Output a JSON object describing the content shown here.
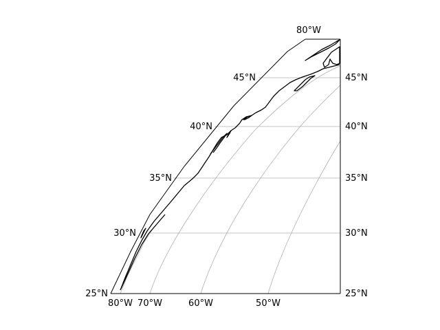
{
  "chart_data": {
    "type": "map",
    "projection": "conic (sector view)",
    "grid": true,
    "gridline_color": "#b0b0b0",
    "outline_color": "#000000",
    "coastline_color": "#000000",
    "latitudes": [
      {
        "value": 25,
        "label": "25°N"
      },
      {
        "value": 30,
        "label": "30°N"
      },
      {
        "value": 35,
        "label": "35°N"
      },
      {
        "value": 40,
        "label": "40°N"
      },
      {
        "value": 45,
        "label": "45°N"
      }
    ],
    "longitudes": [
      {
        "value": -80,
        "label": "80°W"
      },
      {
        "value": -70,
        "label": "70°W"
      },
      {
        "value": -60,
        "label": "60°W"
      },
      {
        "value": -50,
        "label": "50°W"
      }
    ],
    "top_label": "80°W",
    "features": [
      "coastline"
    ]
  }
}
